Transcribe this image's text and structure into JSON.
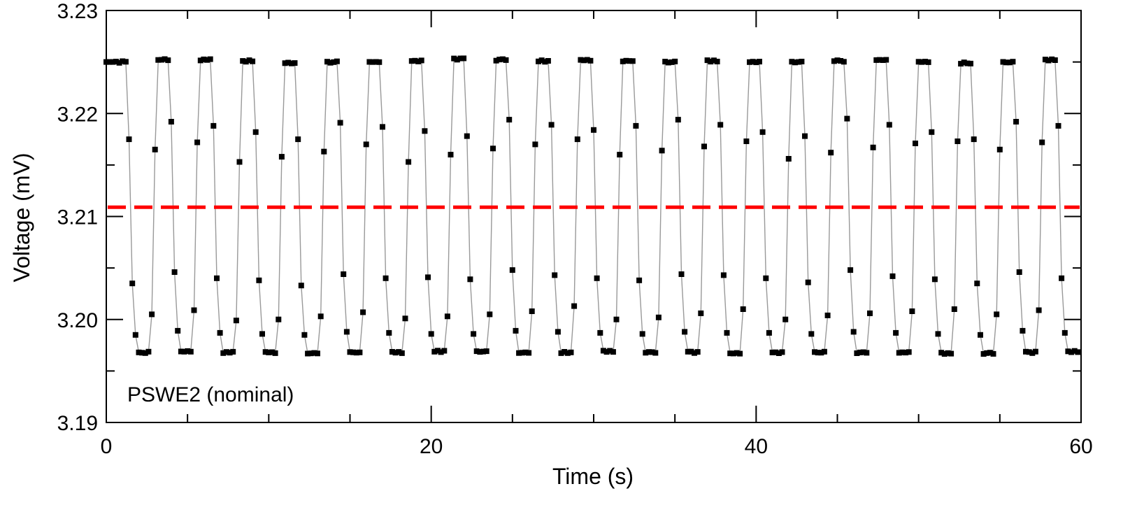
{
  "chart_data": {
    "type": "scatter",
    "title": "",
    "xlabel": "Time (s)",
    "ylabel": "Voltage (mV)",
    "xlim": [
      0,
      60
    ],
    "ylim": [
      3.19,
      3.23
    ],
    "x_ticks": [
      0,
      20,
      40,
      60
    ],
    "x_tick_labels": [
      "0",
      "20",
      "40",
      "60"
    ],
    "x_minor_ticks": [
      5,
      10,
      15,
      25,
      30,
      35,
      45,
      50,
      55
    ],
    "y_ticks": [
      3.19,
      3.2,
      3.21,
      3.22,
      3.23
    ],
    "y_tick_labels": [
      "3.19",
      "3.20",
      "3.21",
      "3.22",
      "3.23"
    ],
    "y_minor_ticks": [
      3.195,
      3.205,
      3.215,
      3.225
    ],
    "annotation": "PSWE2 (nominal)",
    "grid": false,
    "colors": {
      "points": "#000000",
      "connector": "#999999",
      "plateau_fit": "#ff0000",
      "mean_line": "#ff0000"
    },
    "mean_line": {
      "y": 3.2109,
      "style": "dashed"
    },
    "square_wave": {
      "period_s": 3.0,
      "sample_interval_s": 0.2,
      "high_level": 3.2251,
      "low_level": 3.1968,
      "first_fall_s": 1.45,
      "high_levels_per_cycle": [
        3.225,
        3.2252,
        3.2252,
        3.2251,
        3.2249,
        3.225,
        3.225,
        3.2251,
        3.2253,
        3.2252,
        3.2251,
        3.2252,
        3.2251,
        3.225,
        3.2251,
        3.225,
        3.225,
        3.2251,
        3.2252,
        3.225,
        3.2249
      ],
      "low_levels_per_cycle": [
        3.1968,
        3.1969,
        3.1968,
        3.1968,
        3.1967,
        3.1968,
        3.1968,
        3.1969,
        3.1969,
        3.1968,
        3.1968,
        3.1969,
        3.1968,
        3.1968,
        3.1967,
        3.1968,
        3.1968,
        3.1968,
        3.1968,
        3.1967,
        3.1967
      ],
      "falling_transition_values": [
        [
          3.2175,
          3.2035,
          3.1985
        ],
        [
          3.2192,
          3.2046,
          3.1989
        ],
        [
          3.2188,
          3.204,
          3.1987
        ],
        [
          3.2182,
          3.2038,
          3.1986
        ],
        [
          3.2175,
          3.2033,
          3.1985
        ],
        [
          3.2191,
          3.2044,
          3.1988
        ],
        [
          3.2187,
          3.204,
          3.1987
        ],
        [
          3.2183,
          3.2041,
          3.1986
        ],
        [
          3.2178,
          3.2039,
          3.1986
        ],
        [
          3.2194,
          3.2048,
          3.1989
        ],
        [
          3.2189,
          3.2043,
          3.1988
        ],
        [
          3.2184,
          3.204,
          3.1987
        ],
        [
          3.2188,
          3.2038,
          3.1986
        ],
        [
          3.2194,
          3.2044,
          3.1988
        ],
        [
          3.2189,
          3.2043,
          3.1987
        ],
        [
          3.2182,
          3.204,
          3.1987
        ],
        [
          3.2178,
          3.2036,
          3.1986
        ],
        [
          3.2195,
          3.2048,
          3.1988
        ],
        [
          3.2189,
          3.2042,
          3.1987
        ],
        [
          3.2182,
          3.2039,
          3.1986
        ]
      ],
      "rising_transition_values": [
        [
          3.2005,
          3.2165
        ],
        [
          3.2009,
          3.2172
        ],
        [
          3.1999,
          3.2153
        ],
        [
          3.2,
          3.2158
        ],
        [
          3.2003,
          3.2163
        ],
        [
          3.2007,
          3.217
        ],
        [
          3.2001,
          3.2153
        ],
        [
          3.2003,
          3.216
        ],
        [
          3.2005,
          3.2166
        ],
        [
          3.2008,
          3.217
        ],
        [
          3.2013,
          3.2175
        ],
        [
          3.2,
          3.216
        ],
        [
          3.2002,
          3.2164
        ],
        [
          3.2006,
          3.2168
        ],
        [
          3.201,
          3.2173
        ],
        [
          3.2,
          3.2156
        ],
        [
          3.2004,
          3.2162
        ],
        [
          3.2006,
          3.2167
        ],
        [
          3.2008,
          3.2171
        ],
        [
          3.201,
          3.2173
        ]
      ]
    }
  }
}
